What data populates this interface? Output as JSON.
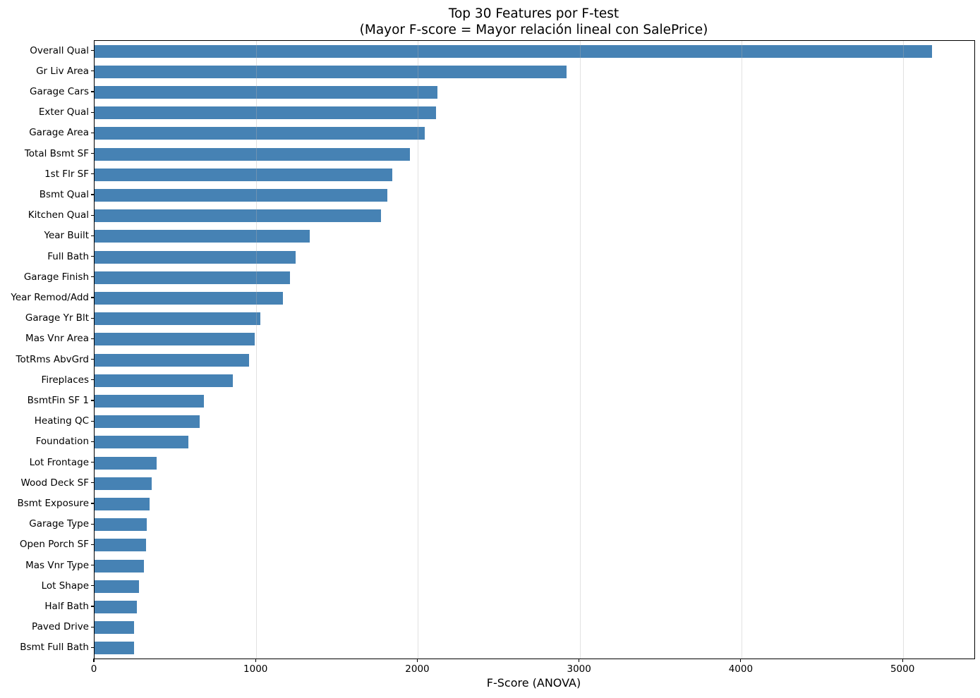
{
  "chart_data": {
    "type": "bar",
    "orientation": "horizontal",
    "title": "Top 30 Features por F-test",
    "subtitle": "(Mayor F-score = Mayor relación lineal con SalePrice)",
    "xlabel": "F-Score (ANOVA)",
    "ylabel": "",
    "xlim": [
      0,
      5440
    ],
    "xticks": [
      0,
      1000,
      2000,
      3000,
      4000,
      5000
    ],
    "grid": "vertical gridlines at x ticks, drawn over bars",
    "legend": "none",
    "bar_color": "#4682B4",
    "categories": [
      "Overall Qual",
      "Gr Liv Area",
      "Garage Cars",
      "Exter Qual",
      "Garage Area",
      "Total Bsmt SF",
      "1st Flr SF",
      "Bsmt Qual",
      "Kitchen Qual",
      "Year Built",
      "Full Bath",
      "Garage Finish",
      "Year Remod/Add",
      "Garage Yr Blt",
      "Mas Vnr Area",
      "TotRms AbvGrd",
      "Fireplaces",
      "BsmtFin SF 1",
      "Heating QC",
      "Foundation",
      "Lot Frontage",
      "Wood Deck SF",
      "Bsmt Exposure",
      "Garage Type",
      "Open Porch SF",
      "Mas Vnr Type",
      "Lot Shape",
      "Half Bath",
      "Paved Drive",
      "Bsmt Full Bath"
    ],
    "values": [
      5180,
      2920,
      2120,
      2113,
      2040,
      1950,
      1840,
      1810,
      1770,
      1330,
      1243,
      1210,
      1165,
      1025,
      990,
      955,
      855,
      675,
      650,
      580,
      385,
      355,
      340,
      322,
      318,
      305,
      275,
      262,
      245,
      243
    ]
  }
}
